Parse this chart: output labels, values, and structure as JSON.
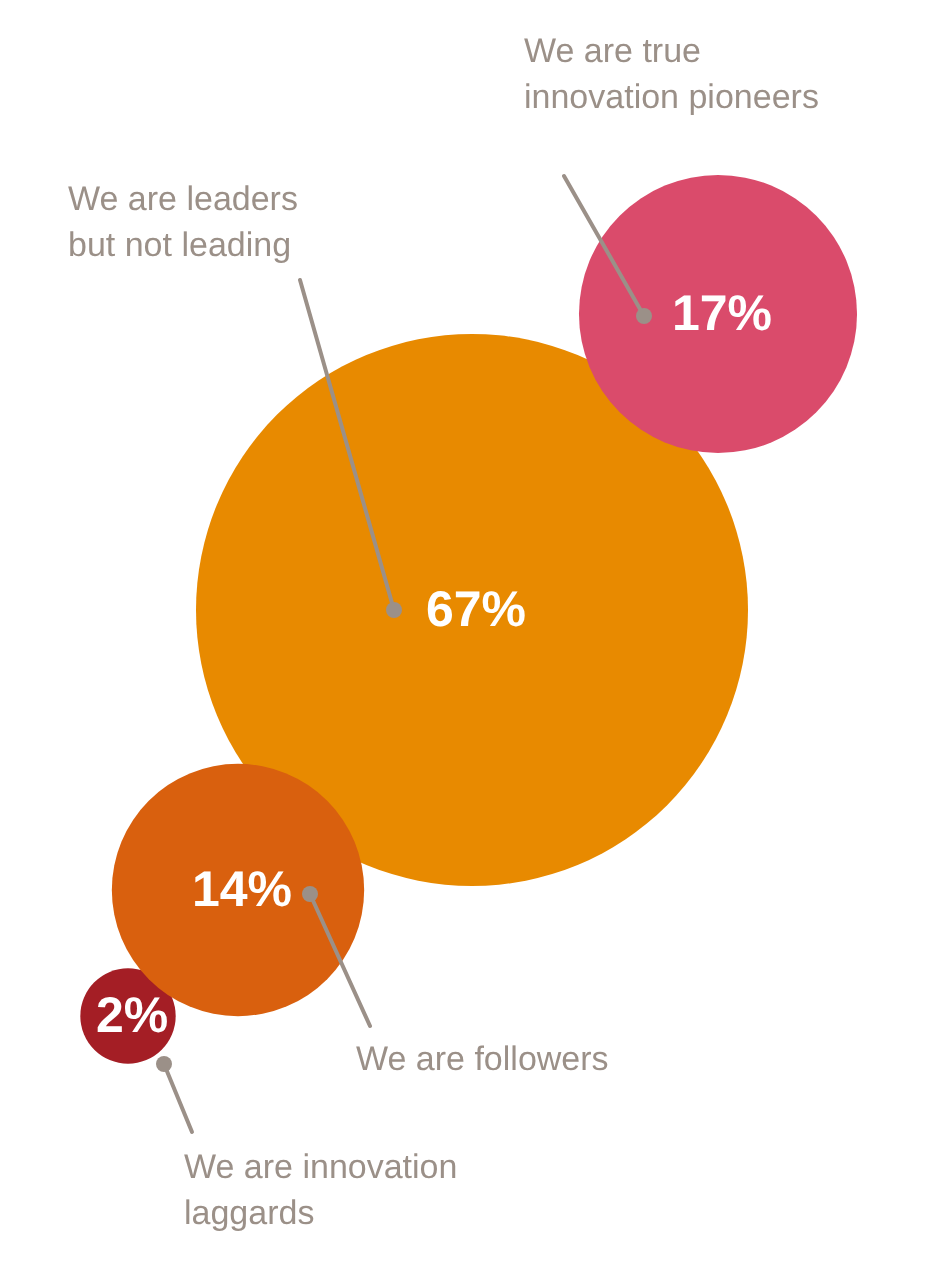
{
  "chart_data": {
    "type": "other",
    "categories": [
      "We are true innovation pioneers",
      "We are leaders but not leading",
      "We are followers",
      "We are innovation laggards"
    ],
    "values": [
      17,
      67,
      14,
      2
    ],
    "value_labels": [
      "17%",
      "67%",
      "14%",
      "2%"
    ],
    "colors": [
      "#da4b6b",
      "#e88a00",
      "#d9600e",
      "#a41e25"
    ]
  }
}
